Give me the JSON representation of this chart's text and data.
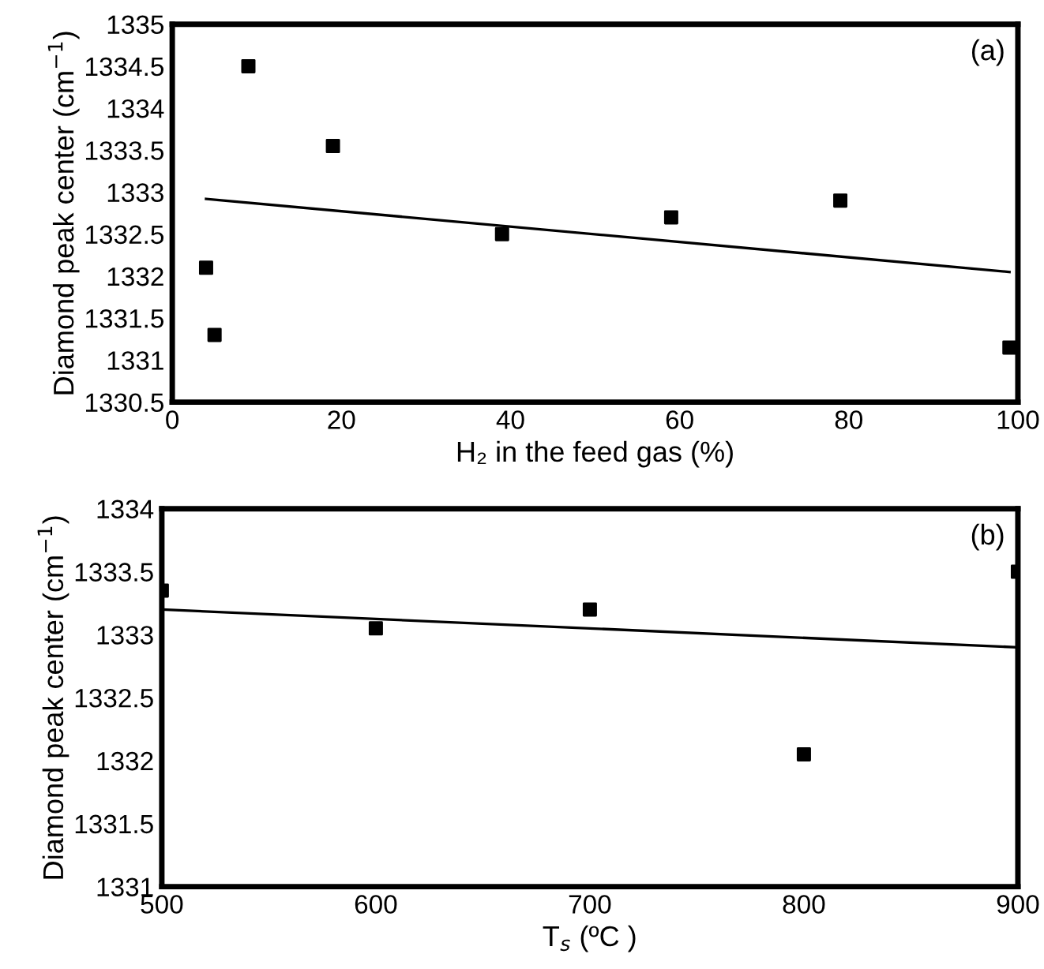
{
  "chart_data": [
    {
      "type": "scatter",
      "xlabel": "H₂ in the feed gas (%)",
      "ylabel": "Diamond peak center (cm$^{−1}$)",
      "annotations": [
        "(a)"
      ],
      "grid": false,
      "legend": false,
      "xlim": [
        0,
        100
      ],
      "xticks": [
        0,
        20,
        40,
        60,
        80,
        100
      ],
      "ylim": [
        1330.5,
        1335
      ],
      "yticks": [
        1330.5,
        1331,
        1331.5,
        1332,
        1332.5,
        1333,
        1333.5,
        1334,
        1334.5,
        1335
      ],
      "series": [
        {
          "marker": "square",
          "color": "#000000",
          "x": [
            4,
            5,
            9,
            19,
            39,
            59,
            79,
            99
          ],
          "values": [
            1332.1,
            1331.3,
            1334.5,
            1333.55,
            1332.5,
            1332.7,
            1332.9,
            1331.15
          ]
        },
        {
          "type": "line",
          "marker": "none",
          "color": "#000000",
          "x": [
            4,
            99
          ],
          "values": [
            1332.92,
            1332.05
          ]
        }
      ]
    },
    {
      "type": "scatter",
      "xlabel": "T$_{s}$ (ºC )",
      "ylabel": "Diamond peak center (cm$^{−1}$)",
      "annotations": [
        "(b)"
      ],
      "grid": false,
      "legend": false,
      "xlim": [
        500,
        900
      ],
      "xticks": [
        500,
        600,
        700,
        800,
        900
      ],
      "ylim": [
        1331,
        1334
      ],
      "yticks": [
        1331,
        1331.5,
        1332,
        1332.5,
        1333,
        1333.5,
        1334
      ],
      "series": [
        {
          "marker": "square",
          "color": "#000000",
          "x": [
            500,
            600,
            700,
            800,
            900
          ],
          "values": [
            1333.35,
            1333.05,
            1333.2,
            1332.05,
            1333.5
          ]
        },
        {
          "type": "line",
          "marker": "none",
          "color": "#000000",
          "x": [
            500,
            900
          ],
          "values": [
            1333.2,
            1332.9
          ]
        }
      ]
    }
  ]
}
